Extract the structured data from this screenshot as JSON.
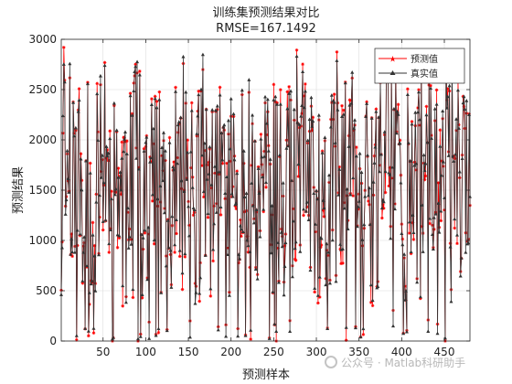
{
  "chart_data": {
    "type": "line",
    "title": "训练集预测结果对比",
    "subtitle": "RMSE=167.1492",
    "xlabel": "预测样本",
    "ylabel": "预测结果",
    "xlim": [
      1,
      480
    ],
    "ylim": [
      0,
      3000
    ],
    "xticks": [
      50,
      100,
      150,
      200,
      250,
      300,
      350,
      400,
      450
    ],
    "yticks": [
      0,
      500,
      1000,
      1500,
      2000,
      2500,
      3000
    ],
    "grid": true,
    "legend_position": "top-right",
    "sample_count": 480,
    "series": [
      {
        "name": "预测值",
        "color": "#ff0000",
        "marker": "star",
        "seed": 7,
        "offset_scale": 170
      },
      {
        "name": "真实值",
        "color": "#333333",
        "marker": "triangle",
        "seed": 11,
        "offset_scale": 0
      }
    ]
  },
  "watermark": {
    "text": "公众号 · Matlab科研助手"
  }
}
